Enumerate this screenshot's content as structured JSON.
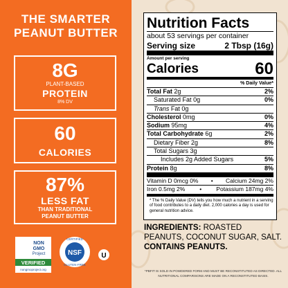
{
  "left_panel": {
    "title_lines": [
      "THE SMARTER",
      "PEANUT BUTTER"
    ],
    "boxes": [
      {
        "big": "8G",
        "lines": [
          "PLANT-BASED"
        ],
        "main": "PROTEIN",
        "sub": [
          "8% DV"
        ]
      },
      {
        "big": "60",
        "lines": [],
        "main": "CALORIES",
        "sub": []
      },
      {
        "big": "87%",
        "lines": [],
        "main": "LESS FAT",
        "sub": [
          "THAN TRADITIONAL",
          "PEANUT BUTTER"
        ]
      }
    ],
    "badges": {
      "non_gmo": [
        "NON",
        "GMO",
        "Project",
        "VERIFIED",
        "nongmoproject.org"
      ],
      "nsf": [
        "CERTIFIED",
        "NSF",
        "GLUTEN-FREE"
      ],
      "kosher": "U"
    }
  },
  "nutrition": {
    "title": "Nutrition Facts",
    "servings": "about 53 servings per container",
    "serving_size_label": "Serving size",
    "serving_size_value": "2 Tbsp (16g)",
    "amount_per_serving": "Amount per serving",
    "calories_label": "Calories",
    "calories_value": "60",
    "dv_header": "% Daily Value*",
    "rows": [
      {
        "label": "Total Fat",
        "amount": "2g",
        "dv": "2%"
      },
      {
        "label": "Saturated Fat",
        "amount": "0g",
        "dv": "0%"
      },
      {
        "label": "Trans",
        "label2": "Fat",
        "amount": "0g"
      },
      {
        "label": "Cholesterol",
        "amount": "0mg",
        "dv": "0%"
      },
      {
        "label": "Sodium",
        "amount": "95mg",
        "dv": "4%"
      },
      {
        "label": "Total Carbohydrate",
        "amount": "6g",
        "dv": "2%"
      },
      {
        "label": "Dietary Fiber",
        "amount": "2g",
        "dv": "8%"
      },
      {
        "label": "Total Sugars",
        "amount": "3g"
      },
      {
        "label": "Includes 2g Added Sugars",
        "dv": "5%"
      },
      {
        "label": "Protein",
        "amount": "8g",
        "dv": "8%"
      }
    ],
    "vitamins": [
      [
        "Vitamin D 0mcg 0%",
        "•",
        "Calcium 24mg 2%"
      ],
      [
        "Iron 0.5mg 2%",
        "•",
        "Potassium 187mg 4%"
      ]
    ],
    "footnote": "* The % Daily Value (DV) tells you how much a nutrient in a serving of food contributes to a daily diet. 2,000 calories a day is used for general nutrition advice."
  },
  "ingredients": {
    "label": "INGREDIENTS:",
    "text": "ROASTED PEANUTS, COCONUT SUGAR, SALT.",
    "contains": "CONTAINS PEANUTS."
  },
  "disclaimer": "*PBFIT IS SOLD IN POWDERED FORM AND MUST BE RECONSTITUTED AS DIRECTED. ALL NUTRITIONAL COMPARISONS ARE MADE ON A RECONSTITUTED BASIS."
}
